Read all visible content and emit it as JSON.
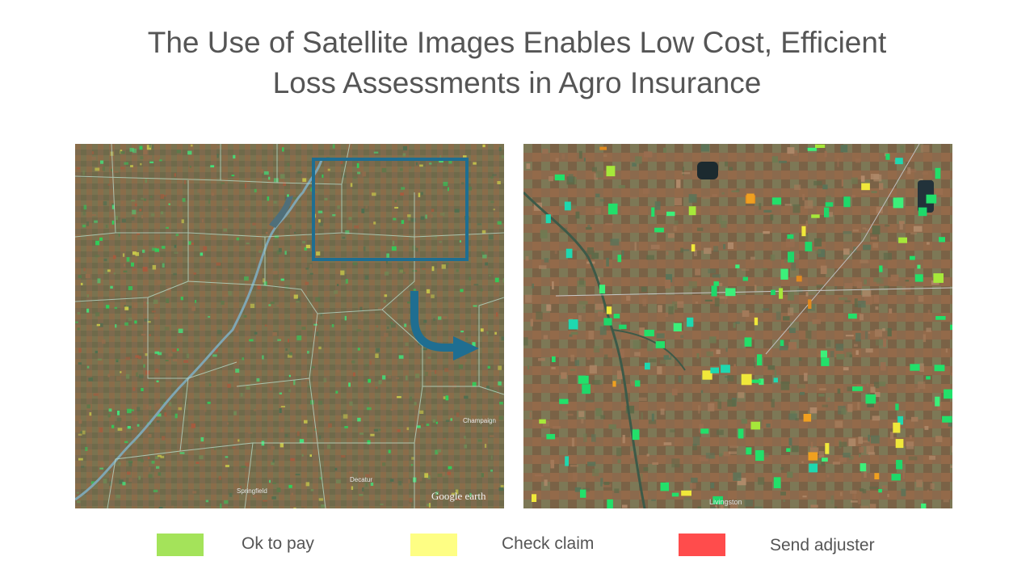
{
  "title": {
    "line1": "The Use of Satellite Images Enables Low Cost, Efficient",
    "line2": "Loss Assessments in Agro Insurance"
  },
  "maps": {
    "left": {
      "watermark": "Google earth",
      "places": [
        "Springfield",
        "Champaign",
        "Decatur"
      ]
    },
    "right": {
      "places": [
        "Livingston"
      ]
    },
    "highlight_color": "#1f6e91"
  },
  "legend": [
    {
      "label": "Ok to pay",
      "color": "#a4e35a"
    },
    {
      "label": "Check claim",
      "color": "#fefe84"
    },
    {
      "label": "Send adjuster",
      "color": "#ff4c4c"
    }
  ]
}
